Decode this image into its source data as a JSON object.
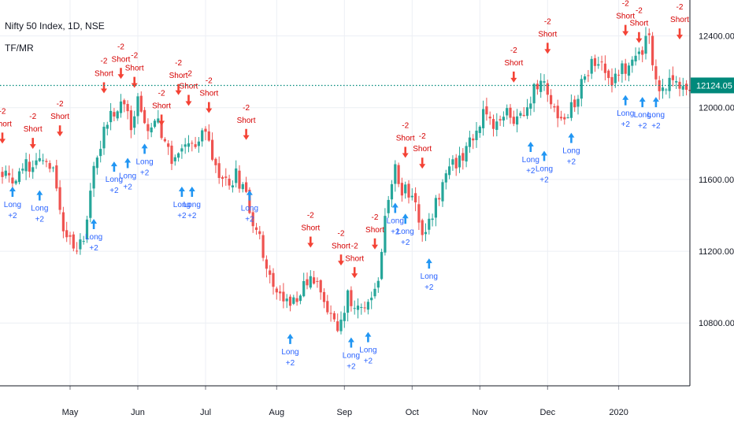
{
  "header": {
    "symbol_line": "Nifty 50 Index, 1D, NSE",
    "indicator": "TF/MR"
  },
  "price_axis": {
    "ticks": [
      "12400.00",
      "12000.00",
      "11600.00",
      "11200.00",
      "10800.00"
    ],
    "last_price_label": "12124.05"
  },
  "time_axis": {
    "ticks": [
      "May",
      "Jun",
      "Jul",
      "Aug",
      "Sep",
      "Oct",
      "Nov",
      "Dec",
      "2020"
    ]
  },
  "colors": {
    "up": "#26a69a",
    "down": "#ef5350",
    "long_arrow": "#2196f3",
    "short_arrow": "#f44336",
    "long_text": "#2962ff",
    "short_text": "#d50000",
    "last_price": "#00897b",
    "grid": "#eceff4"
  },
  "signal_text": {
    "long": "Long",
    "long_value": "+2",
    "short": "Short",
    "short_value": "-2"
  },
  "chart_data": {
    "type": "candlestick",
    "title": "Nifty 50 Index, 1D, NSE",
    "ylim": [
      10450,
      12600
    ],
    "y_ticks": [
      12400,
      12000,
      11600,
      11200,
      10800
    ],
    "x_ticks": [
      {
        "label": "May",
        "index": 20
      },
      {
        "label": "Jun",
        "index": 40
      },
      {
        "label": "Jul",
        "index": 60
      },
      {
        "label": "Aug",
        "index": 81
      },
      {
        "label": "Sep",
        "index": 101
      },
      {
        "label": "Oct",
        "index": 121
      },
      {
        "label": "Nov",
        "index": 141
      },
      {
        "label": "Dec",
        "index": 161
      },
      {
        "label": "2020",
        "index": 182
      }
    ],
    "last_price": 12124.05,
    "trend_anchors": [
      [
        0,
        11650
      ],
      [
        3,
        11600
      ],
      [
        6,
        11700
      ],
      [
        9,
        11660
      ],
      [
        12,
        11720
      ],
      [
        15,
        11650
      ],
      [
        18,
        11350
      ],
      [
        21,
        11200
      ],
      [
        24,
        11300
      ],
      [
        27,
        11650
      ],
      [
        30,
        11850
      ],
      [
        33,
        11980
      ],
      [
        36,
        12000
      ],
      [
        38,
        11900
      ],
      [
        40,
        12050
      ],
      [
        43,
        11900
      ],
      [
        46,
        11950
      ],
      [
        48,
        11780
      ],
      [
        51,
        11700
      ],
      [
        54,
        11750
      ],
      [
        57,
        11800
      ],
      [
        60,
        11900
      ],
      [
        63,
        11650
      ],
      [
        66,
        11580
      ],
      [
        69,
        11620
      ],
      [
        72,
        11500
      ],
      [
        75,
        11300
      ],
      [
        78,
        11150
      ],
      [
        81,
        10950
      ],
      [
        84,
        10900
      ],
      [
        87,
        10950
      ],
      [
        90,
        11050
      ],
      [
        93,
        11000
      ],
      [
        96,
        10850
      ],
      [
        99,
        10800
      ],
      [
        102,
        10950
      ],
      [
        105,
        10850
      ],
      [
        108,
        10900
      ],
      [
        111,
        11050
      ],
      [
        114,
        11500
      ],
      [
        116,
        11650
      ],
      [
        118,
        11550
      ],
      [
        121,
        11500
      ],
      [
        124,
        11300
      ],
      [
        127,
        11400
      ],
      [
        130,
        11600
      ],
      [
        133,
        11700
      ],
      [
        136,
        11700
      ],
      [
        139,
        11850
      ],
      [
        142,
        11950
      ],
      [
        145,
        11900
      ],
      [
        148,
        11980
      ],
      [
        151,
        11900
      ],
      [
        154,
        12000
      ],
      [
        157,
        12100
      ],
      [
        159,
        12150
      ],
      [
        161,
        12050
      ],
      [
        164,
        11950
      ],
      [
        167,
        11950
      ],
      [
        170,
        12050
      ],
      [
        172,
        12200
      ],
      [
        175,
        12250
      ],
      [
        178,
        12200
      ],
      [
        180,
        12150
      ],
      [
        182,
        12200
      ],
      [
        185,
        12250
      ],
      [
        188,
        12300
      ],
      [
        191,
        12400
      ],
      [
        192,
        12200
      ],
      [
        193,
        12124
      ]
    ],
    "signals_long": [
      {
        "index": 3,
        "price": 11560
      },
      {
        "index": 11,
        "price": 11540
      },
      {
        "index": 27,
        "price": 11380
      },
      {
        "index": 33,
        "price": 11700
      },
      {
        "index": 37,
        "price": 11720
      },
      {
        "index": 42,
        "price": 11800
      },
      {
        "index": 53,
        "price": 11560
      },
      {
        "index": 56,
        "price": 11560
      },
      {
        "index": 73,
        "price": 11540
      },
      {
        "index": 85,
        "price": 10740
      },
      {
        "index": 103,
        "price": 10720
      },
      {
        "index": 108,
        "price": 10750
      },
      {
        "index": 116,
        "price": 11470
      },
      {
        "index": 119,
        "price": 11410
      },
      {
        "index": 126,
        "price": 11160
      },
      {
        "index": 156,
        "price": 11810
      },
      {
        "index": 160,
        "price": 11760
      },
      {
        "index": 168,
        "price": 11860
      },
      {
        "index": 184,
        "price": 12070
      },
      {
        "index": 189,
        "price": 12060
      },
      {
        "index": 193,
        "price": 12060
      }
    ],
    "signals_short": [
      {
        "index": 0,
        "price": 11800
      },
      {
        "index": 9,
        "price": 11770
      },
      {
        "index": 17,
        "price": 11840
      },
      {
        "index": 30,
        "price": 12080
      },
      {
        "index": 35,
        "price": 12160
      },
      {
        "index": 39,
        "price": 12110
      },
      {
        "index": 47,
        "price": 11900
      },
      {
        "index": 52,
        "price": 12070
      },
      {
        "index": 55,
        "price": 12010
      },
      {
        "index": 61,
        "price": 11970
      },
      {
        "index": 72,
        "price": 11820
      },
      {
        "index": 91,
        "price": 11220
      },
      {
        "index": 100,
        "price": 11120
      },
      {
        "index": 104,
        "price": 11050
      },
      {
        "index": 110,
        "price": 11210
      },
      {
        "index": 119,
        "price": 11720
      },
      {
        "index": 124,
        "price": 11660
      },
      {
        "index": 151,
        "price": 12140
      },
      {
        "index": 161,
        "price": 12300
      },
      {
        "index": 184,
        "price": 12400
      },
      {
        "index": 188,
        "price": 12360
      },
      {
        "index": 200,
        "price": 12380
      }
    ]
  }
}
